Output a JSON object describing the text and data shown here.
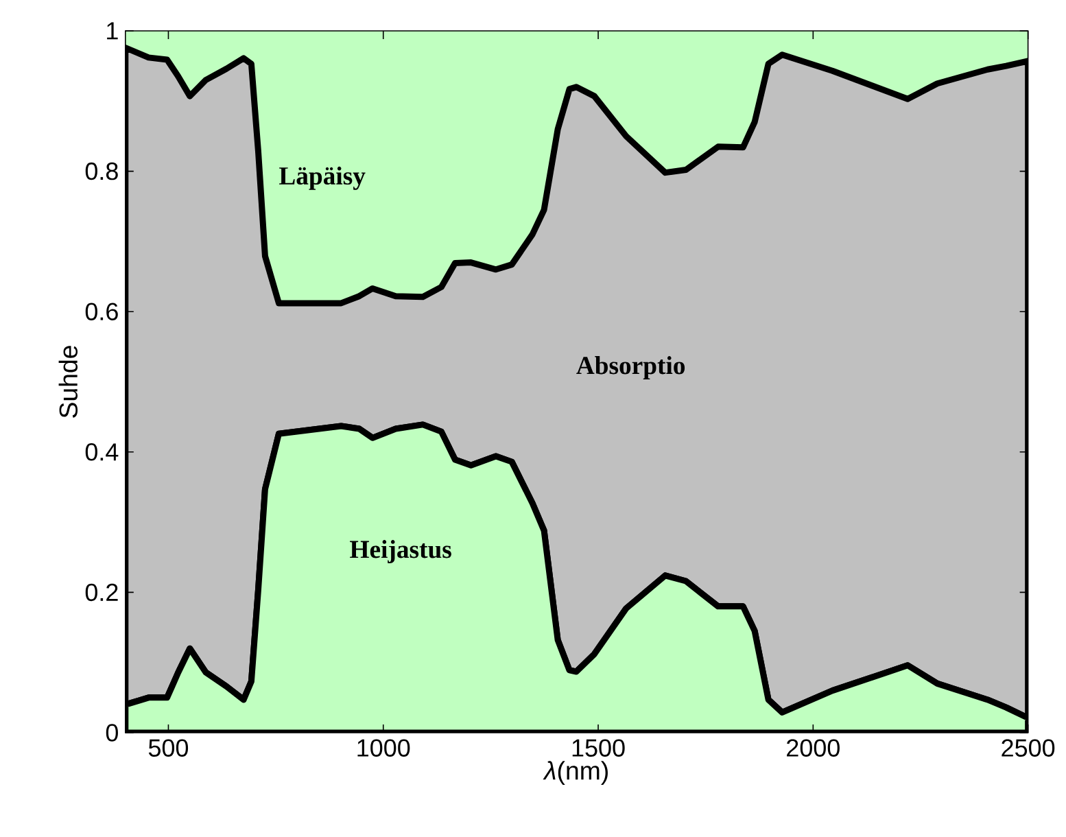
{
  "chart_data": {
    "type": "area",
    "stacked": true,
    "xlabel": "*λ*(nm)",
    "ylabel": "Suhde",
    "x": [
      400,
      454,
      497,
      523,
      550,
      587,
      635,
      675,
      693,
      709,
      725,
      757,
      902,
      944,
      975,
      1029,
      1092,
      1135,
      1167,
      1204,
      1262,
      1299,
      1347,
      1374,
      1406,
      1433,
      1449,
      1491,
      1565,
      1656,
      1704,
      1779,
      1837,
      1864,
      1896,
      1928,
      2045,
      2220,
      2289,
      2406,
      2449,
      2500
    ],
    "series": [
      {
        "color": "#c0ffc0",
        "values": [
          0.04,
          0.05,
          0.05,
          0.086,
          0.12,
          0.086,
          0.066,
          0.047,
          0.073,
          0.203,
          0.347,
          0.426,
          0.437,
          0.433,
          0.42,
          0.433,
          0.439,
          0.429,
          0.389,
          0.381,
          0.394,
          0.386,
          0.327,
          0.288,
          0.132,
          0.089,
          0.087,
          0.112,
          0.177,
          0.224,
          0.216,
          0.18,
          0.18,
          0.145,
          0.047,
          0.029,
          0.06,
          0.096,
          0.07,
          0.047,
          0.036,
          0.021
        ]
      },
      {
        "color": "#c0c0c0",
        "values": [
          0.936,
          0.912,
          0.909,
          0.849,
          0.787,
          0.844,
          0.88,
          0.914,
          0.88,
          0.626,
          0.332,
          0.186,
          0.175,
          0.189,
          0.213,
          0.189,
          0.182,
          0.206,
          0.28,
          0.289,
          0.266,
          0.281,
          0.383,
          0.457,
          0.728,
          0.828,
          0.833,
          0.795,
          0.673,
          0.574,
          0.586,
          0.655,
          0.654,
          0.725,
          0.906,
          0.937,
          0.883,
          0.807,
          0.855,
          0.898,
          0.914,
          0.936
        ]
      },
      {
        "color": "#c0ffc0",
        "values": [
          0.024,
          0.038,
          0.041,
          0.065,
          0.093,
          0.07,
          0.054,
          0.039,
          0.047,
          0.171,
          0.321,
          0.388,
          0.388,
          0.378,
          0.367,
          0.378,
          0.379,
          0.365,
          0.331,
          0.33,
          0.34,
          0.333,
          0.29,
          0.255,
          0.14,
          0.083,
          0.08,
          0.093,
          0.15,
          0.202,
          0.198,
          0.165,
          0.166,
          0.13,
          0.047,
          0.034,
          0.057,
          0.097,
          0.075,
          0.055,
          0.05,
          0.043
        ]
      }
    ],
    "annotations": [
      "Läpäisy",
      "Absorptio",
      "Heijastus"
    ],
    "xlim": [
      400,
      2500
    ],
    "ylim": [
      0,
      1
    ],
    "xticks": [
      500,
      1000,
      1500,
      2000,
      2500
    ],
    "yticks": [
      0,
      0.2,
      0.4,
      0.6,
      0.8,
      1
    ]
  }
}
